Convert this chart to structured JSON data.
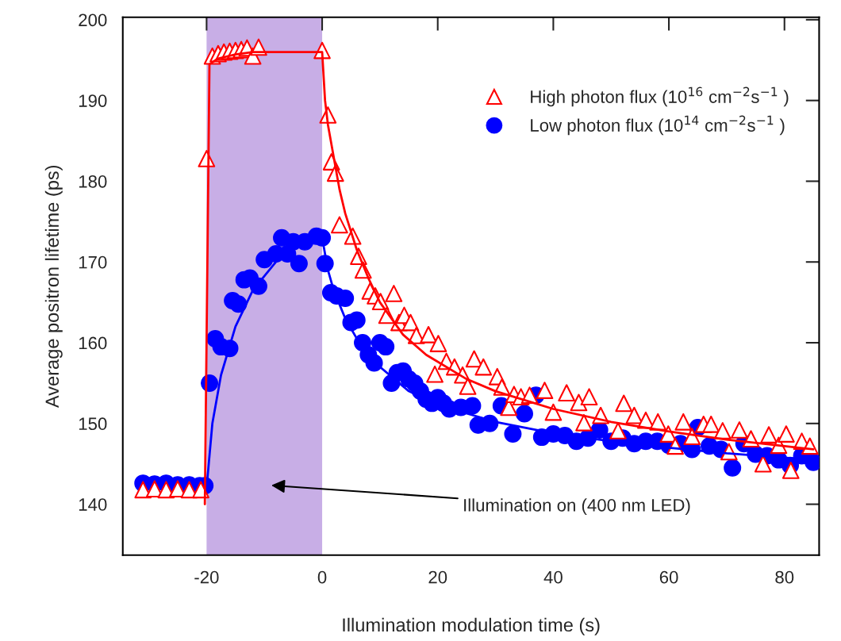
{
  "chart_data": {
    "type": "scatter",
    "xlabel": "Illumination modulation time (s)",
    "ylabel": "Average positron lifetime (ps)",
    "xlim": [
      -34.5,
      86
    ],
    "ylim": [
      133.7,
      200.3
    ],
    "xticks": [
      -20,
      0,
      20,
      40,
      60,
      80
    ],
    "yticks": [
      140,
      150,
      160,
      170,
      180,
      190,
      200
    ],
    "grid": false,
    "legend": "top right",
    "bands": [
      {
        "axis": "x",
        "from": -20,
        "to": 0,
        "color": "#c8aee6"
      }
    ],
    "annotations": [
      "Illumination on (400 nm LED)"
    ],
    "series": [
      {
        "name": "Low photon flux (10$^{14}$ cm$^{−2}$s$^{−1}$ )",
        "marker": "circle",
        "color": "#0000ff",
        "x": [
          -31,
          -29,
          -27,
          -25,
          -23,
          -21.2,
          -20.3,
          -19.5,
          -18.5,
          -17.5,
          -16,
          -15.5,
          -14.5,
          -13.5,
          -12.5,
          -11,
          -10,
          -8,
          -7,
          -6,
          -5,
          -4,
          -3,
          -1,
          0,
          0.5,
          1.5,
          2.5,
          4,
          5,
          6,
          7,
          8,
          9,
          10,
          11,
          12,
          13,
          14,
          15,
          16,
          17,
          18,
          19,
          20,
          21,
          22,
          24,
          26,
          27,
          29,
          31,
          33,
          35,
          37,
          38,
          40,
          42,
          44,
          46,
          48,
          50,
          52,
          54,
          56,
          58,
          60,
          62,
          64,
          65,
          67,
          69,
          71,
          73,
          75,
          77,
          79,
          81,
          83,
          85
        ],
        "values": [
          142.6,
          142.5,
          142.6,
          142.4,
          142.4,
          142.3,
          142.3,
          155,
          160.5,
          159.5,
          159.3,
          165.2,
          164.8,
          167.8,
          168,
          167,
          170.3,
          171,
          173,
          171,
          172.5,
          169.8,
          172.5,
          173.2,
          173,
          169.8,
          166.2,
          165.8,
          165.5,
          162.5,
          162.8,
          160,
          158.5,
          157.5,
          160,
          159.5,
          155,
          156.3,
          156.5,
          155.5,
          155,
          154,
          153,
          152.5,
          153.2,
          152.5,
          151.8,
          152,
          152.2,
          149.8,
          150,
          152.2,
          148.7,
          151.2,
          153.5,
          148.3,
          148.7,
          148.5,
          147.8,
          148.2,
          149.2,
          147.8,
          148.2,
          147.5,
          147.8,
          147.8,
          147.3,
          147.5,
          146.8,
          149.5,
          147.2,
          146.8,
          144.5,
          147.5,
          146.2,
          146,
          145.5,
          144.8,
          146,
          145.2
        ]
      },
      {
        "name": "High photon flux (10$^{16}$ cm$^{−2}$s$^{−1}$ )",
        "marker": "triangle",
        "color": "#ff0000",
        "x": [
          -31,
          -29,
          -27,
          -25,
          -23,
          -21,
          -20,
          -19,
          -18,
          -17,
          -16,
          -15,
          -14,
          -13,
          -12,
          -11,
          0,
          1,
          1.6,
          2.3,
          3,
          5.3,
          6.3,
          7.1,
          8.3,
          9.2,
          10.1,
          11.2,
          12.4,
          13.3,
          14.2,
          15.3,
          16.3,
          18.4,
          19.5,
          20.1,
          21.5,
          22.9,
          24.3,
          25.2,
          26.3,
          27.9,
          30.3,
          31.1,
          32.3,
          33.2,
          34.4,
          35.9,
          38.5,
          40,
          42.3,
          44.4,
          45.3,
          46.2,
          48.2,
          51.2,
          52.2,
          54,
          56,
          58.1,
          59.9,
          61.1,
          62.5,
          64,
          66,
          67.3,
          69.3,
          70.4,
          72.2,
          74.2,
          76.3,
          77.3,
          79,
          80.3,
          81.1,
          83,
          84.4
        ],
        "values": [
          141.8,
          141.9,
          141.8,
          141.9,
          141.8,
          141.8,
          182.8,
          195.5,
          195.8,
          196,
          196.1,
          196.2,
          196.3,
          196.5,
          195.5,
          196.6,
          196.2,
          188.2,
          182.4,
          181,
          174.6,
          173.2,
          170.7,
          169,
          166.4,
          165.8,
          165.1,
          163.4,
          166.1,
          162.5,
          163.4,
          162.5,
          160.9,
          161,
          156.1,
          159.9,
          157.7,
          157,
          156,
          154.6,
          158,
          157,
          155.8,
          154.5,
          152,
          153.6,
          153.3,
          153.5,
          154.1,
          151.4,
          153.8,
          152.6,
          150.1,
          153.3,
          151,
          149.1,
          152.5,
          151,
          150.4,
          150.2,
          148.7,
          147.2,
          150.2,
          148.4,
          149.9,
          149.9,
          149.1,
          146.5,
          149.2,
          148.1,
          145,
          148.6,
          147.3,
          148.7,
          144.2,
          147.8,
          147.2
        ]
      },
      {
        "type": "line",
        "marker": "none",
        "line_style": "solid",
        "color": "#0000ff",
        "x": [
          -20,
          -19,
          -17.5,
          -15,
          -12,
          -8,
          -4,
          0,
          1,
          2,
          4,
          6,
          8,
          10,
          15,
          20,
          30,
          40,
          50,
          60,
          70,
          85
        ],
        "values": [
          142,
          150,
          156,
          162,
          166.5,
          170,
          172,
          173,
          169,
          166.5,
          163,
          160.5,
          158.5,
          157,
          154,
          152.3,
          150.2,
          148.8,
          147.8,
          147,
          146.3,
          145.5
        ]
      },
      {
        "type": "line",
        "marker": "none",
        "line_style": "solid",
        "color": "#ff0000",
        "x": [
          -20.3,
          -19.5,
          -18,
          -15,
          -12,
          0,
          0.5,
          1,
          2,
          3,
          4,
          6,
          8,
          10,
          14,
          18,
          25,
          30,
          40,
          50,
          60,
          70,
          85
        ],
        "values": [
          140,
          194.5,
          195.2,
          195.7,
          196,
          196,
          190,
          187,
          183,
          179,
          176,
          171.5,
          168,
          165,
          161,
          158.5,
          155.5,
          154,
          151.8,
          150.2,
          149,
          148,
          146.8
        ]
      }
    ]
  }
}
